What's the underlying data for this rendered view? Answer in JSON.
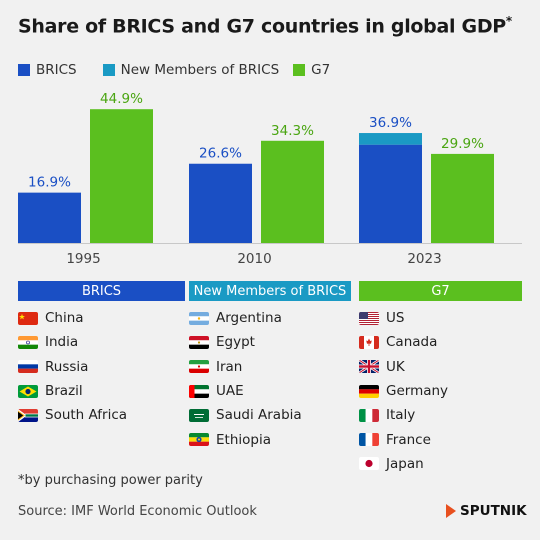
{
  "title": "Share of BRICS and G7 countries in global GDP",
  "title_mark": "*",
  "legend": [
    {
      "label": "BRICS",
      "color": "#1a4fc4"
    },
    {
      "label": "New Members of BRICS",
      "color": "#1a9ac4"
    },
    {
      "label": "G7",
      "color": "#5bbf1f"
    }
  ],
  "chart_data": {
    "type": "bar",
    "title": "Share of BRICS and G7 countries in global GDP*",
    "categories": [
      "1995",
      "2010",
      "2023"
    ],
    "series": [
      {
        "name": "BRICS",
        "values": [
          16.9,
          26.6,
          33.0
        ],
        "color": "#1a4fc4"
      },
      {
        "name": "New Members of BRICS",
        "values": [
          null,
          null,
          3.9
        ],
        "color": "#1a9ac4"
      },
      {
        "name": "G7",
        "values": [
          44.9,
          34.3,
          29.9
        ],
        "color": "#5bbf1f"
      }
    ],
    "labels": {
      "brics_total": [
        "16.9%",
        "26.6%",
        "36.9%"
      ],
      "g7": [
        "44.9%",
        "34.3%",
        "29.9%"
      ]
    },
    "stacked_brics": true,
    "ylim": [
      0,
      50
    ],
    "grid": false
  },
  "groups": {
    "brics": {
      "header": "BRICS",
      "color": "#1a4fc4",
      "countries": [
        {
          "name": "China",
          "flag": "cn"
        },
        {
          "name": "India",
          "flag": "in"
        },
        {
          "name": "Russia",
          "flag": "ru"
        },
        {
          "name": "Brazil",
          "flag": "br"
        },
        {
          "name": "South Africa",
          "flag": "za"
        }
      ]
    },
    "new_members": {
      "header": "New Members of BRICS",
      "color": "#1a9ac4",
      "countries": [
        {
          "name": "Argentina",
          "flag": "ar"
        },
        {
          "name": "Egypt",
          "flag": "eg"
        },
        {
          "name": "Iran",
          "flag": "ir"
        },
        {
          "name": "UAE",
          "flag": "ae"
        },
        {
          "name": "Saudi Arabia",
          "flag": "sa"
        },
        {
          "name": "Ethiopia",
          "flag": "et"
        }
      ]
    },
    "g7": {
      "header": "G7",
      "color": "#5bbf1f",
      "countries": [
        {
          "name": "US",
          "flag": "us"
        },
        {
          "name": "Canada",
          "flag": "ca"
        },
        {
          "name": "UK",
          "flag": "uk"
        },
        {
          "name": "Germany",
          "flag": "de"
        },
        {
          "name": "Italy",
          "flag": "it"
        },
        {
          "name": "France",
          "flag": "fr"
        },
        {
          "name": "Japan",
          "flag": "jp"
        }
      ]
    }
  },
  "footnote": "*by purchasing power parity",
  "source": "Source: IMF World Economic Outlook",
  "brand": "SPUTNIK"
}
